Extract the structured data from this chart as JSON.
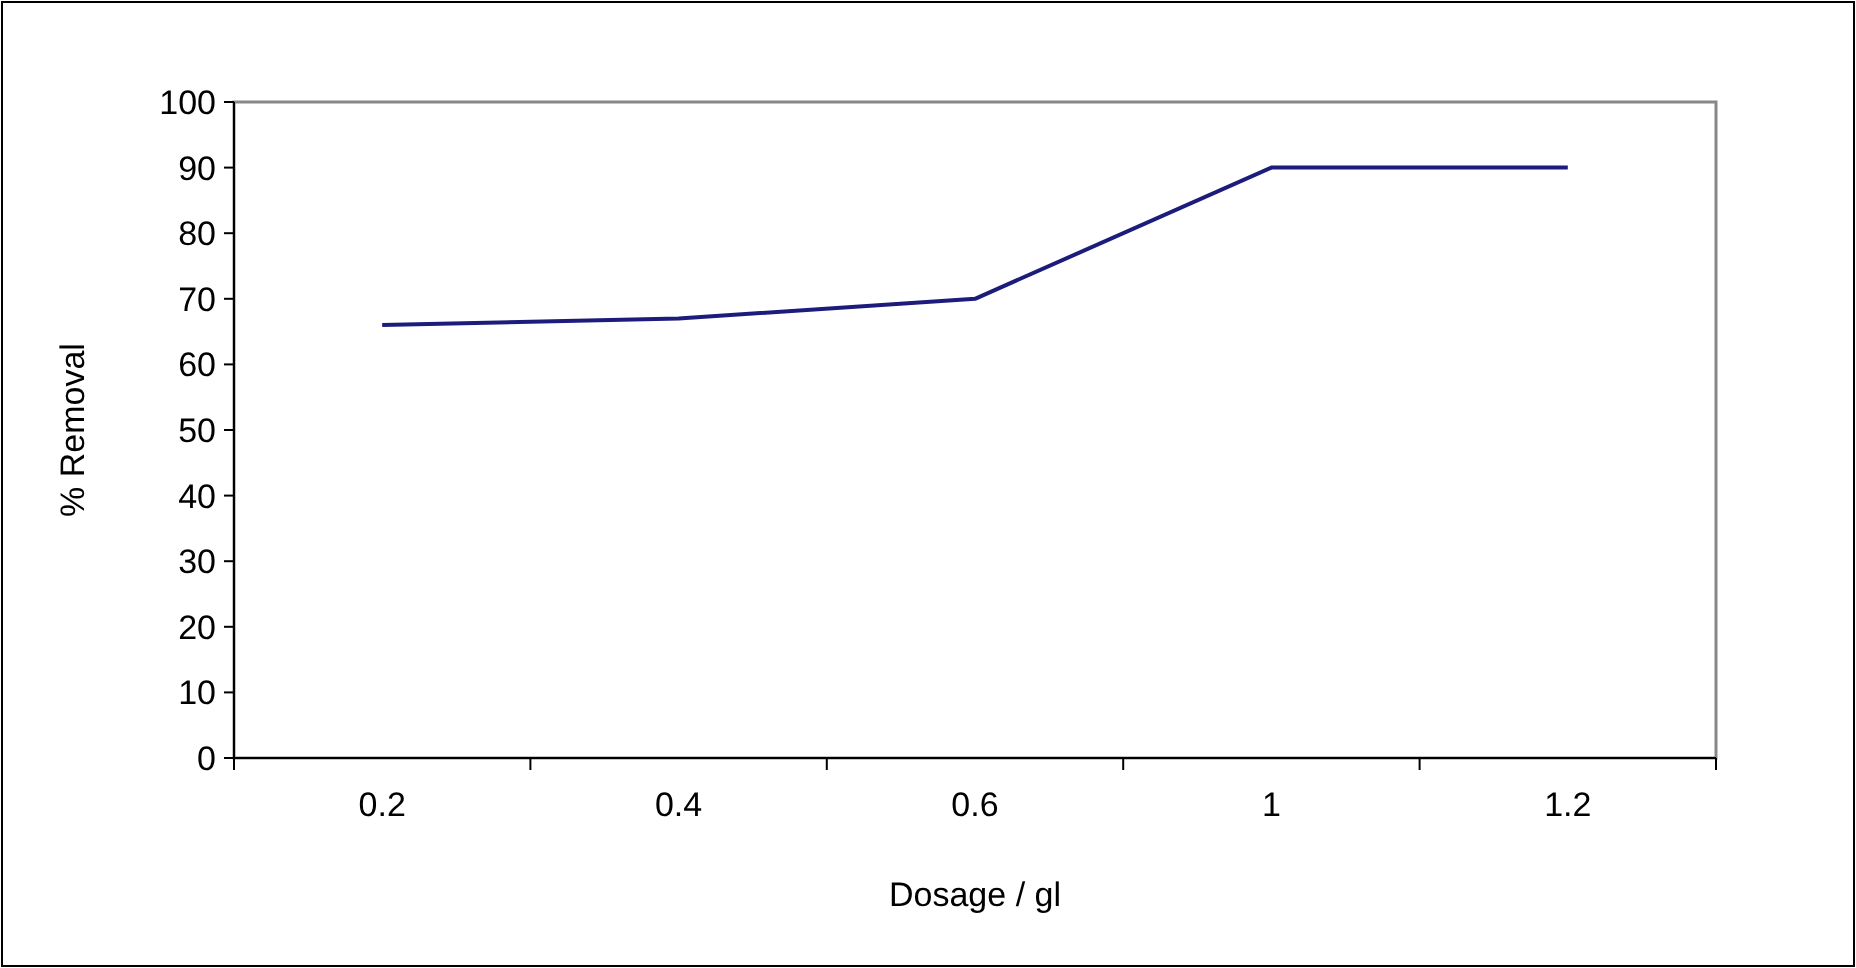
{
  "chart_data": {
    "type": "line",
    "xlabel": "Dosage / gl",
    "ylabel": "% Removal",
    "categories": [
      "0.2",
      "0.4",
      "0.6",
      "1",
      "1.2"
    ],
    "series": [
      {
        "color": "#1c1c7c",
        "values": [
          66,
          67,
          70,
          90,
          90
        ]
      }
    ],
    "ylim": [
      0,
      100
    ],
    "yticks": [
      0,
      10,
      20,
      30,
      40,
      50,
      60,
      70,
      80,
      90,
      100
    ],
    "marker": "none",
    "line_style": "solid"
  }
}
